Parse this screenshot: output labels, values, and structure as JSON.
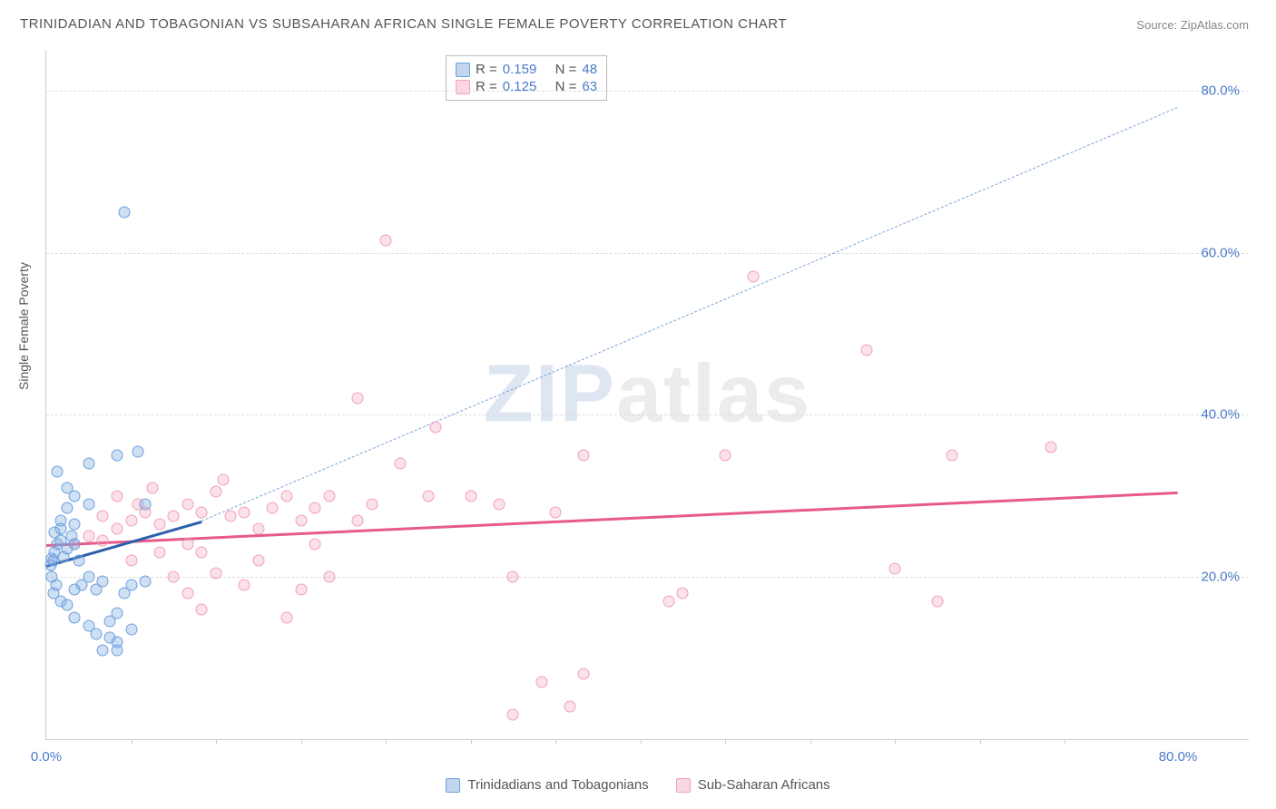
{
  "title": "TRINIDADIAN AND TOBAGONIAN VS SUBSAHARAN AFRICAN SINGLE FEMALE POVERTY CORRELATION CHART",
  "source_label": "Source:",
  "source_name": "ZipAtlas.com",
  "y_axis_label": "Single Female Poverty",
  "watermark_a": "ZIP",
  "watermark_b": "atlas",
  "axes": {
    "x_min": 0,
    "x_max": 85,
    "y_min": 0,
    "y_max": 85,
    "x_ticks": [
      0,
      80
    ],
    "x_tick_labels": [
      "0.0%",
      "80.0%"
    ],
    "minor_x_ticks": [
      6,
      12,
      18,
      24,
      30,
      36,
      42,
      48,
      54,
      60,
      66,
      72
    ],
    "y_ticks": [
      20,
      40,
      60,
      80
    ],
    "y_tick_labels": [
      "20.0%",
      "40.0%",
      "60.0%",
      "80.0%"
    ]
  },
  "colors": {
    "blue_fill": "rgba(120,165,220,0.35)",
    "blue_stroke": "#6da0e0",
    "blue_line_solid": "#2b5faa",
    "blue_line_dash": "#7aa5dc",
    "pink_fill": "rgba(240,140,170,0.25)",
    "pink_stroke": "#f0a0b8",
    "pink_line": "#e75a8a",
    "grid": "#dddddd",
    "axis": "#cccccc",
    "tick_text": "#4a7ac7",
    "title_text": "#555555"
  },
  "stats": {
    "series1": {
      "r_label": "R =",
      "r": "0.159",
      "n_label": "N =",
      "n": "48"
    },
    "series2": {
      "r_label": "R =",
      "r": "0.125",
      "n_label": "N =",
      "n": "63"
    }
  },
  "legend": {
    "series1": "Trinidadians and Tobagonians",
    "series2": "Sub-Saharan Africans"
  },
  "trend_lines": {
    "blue_solid": {
      "x1": 0,
      "y1": 21.5,
      "x2": 11,
      "y2": 27
    },
    "blue_dash": {
      "x1": 11,
      "y1": 27,
      "x2": 80,
      "y2": 78
    },
    "pink": {
      "x1": 0,
      "y1": 24,
      "x2": 80,
      "y2": 30.5
    }
  },
  "points_blue": [
    [
      0.3,
      21.5
    ],
    [
      0.5,
      22
    ],
    [
      0.6,
      23
    ],
    [
      0.8,
      24
    ],
    [
      1,
      24.5
    ],
    [
      0.4,
      20
    ],
    [
      0.7,
      19
    ],
    [
      1.2,
      22.5
    ],
    [
      1.5,
      23.5
    ],
    [
      1.8,
      25
    ],
    [
      2,
      24
    ],
    [
      2.3,
      22
    ],
    [
      0.5,
      18
    ],
    [
      1,
      17
    ],
    [
      1.5,
      16.5
    ],
    [
      2,
      18.5
    ],
    [
      2.5,
      19
    ],
    [
      3,
      20
    ],
    [
      3.5,
      18.5
    ],
    [
      4,
      19.5
    ],
    [
      2,
      15
    ],
    [
      3,
      14
    ],
    [
      3.5,
      13
    ],
    [
      4.5,
      14.5
    ],
    [
      5,
      15.5
    ],
    [
      5.5,
      18
    ],
    [
      4,
      11
    ],
    [
      5,
      12
    ],
    [
      6,
      13.5
    ],
    [
      5,
      11
    ],
    [
      4.5,
      12.5
    ],
    [
      1,
      27
    ],
    [
      1.5,
      28.5
    ],
    [
      2,
      30
    ],
    [
      3,
      29
    ],
    [
      1.5,
      31
    ],
    [
      0.8,
      33
    ],
    [
      3,
      34
    ],
    [
      5,
      35
    ],
    [
      6.5,
      35.5
    ],
    [
      7,
      29
    ],
    [
      1,
      26
    ],
    [
      2,
      26.5
    ],
    [
      0.6,
      25.5
    ],
    [
      6,
      19
    ],
    [
      7,
      19.5
    ],
    [
      5.5,
      65
    ],
    [
      0.4,
      22.3
    ]
  ],
  "points_pink": [
    [
      2,
      24
    ],
    [
      3,
      25
    ],
    [
      4,
      24.5
    ],
    [
      5,
      26
    ],
    [
      6,
      27
    ],
    [
      7,
      28
    ],
    [
      7.5,
      31
    ],
    [
      5,
      30
    ],
    [
      6.5,
      29
    ],
    [
      8,
      26.5
    ],
    [
      9,
      27.5
    ],
    [
      10,
      29
    ],
    [
      11,
      28
    ],
    [
      12,
      30.5
    ],
    [
      12.5,
      32
    ],
    [
      10,
      24
    ],
    [
      11,
      23
    ],
    [
      13,
      27.5
    ],
    [
      14,
      28
    ],
    [
      15,
      26
    ],
    [
      16,
      28.5
    ],
    [
      17,
      30
    ],
    [
      18,
      27
    ],
    [
      19,
      28.5
    ],
    [
      20,
      30
    ],
    [
      9,
      20
    ],
    [
      10,
      18
    ],
    [
      12,
      20.5
    ],
    [
      14,
      19
    ],
    [
      11,
      16
    ],
    [
      17,
      15
    ],
    [
      18,
      18.5
    ],
    [
      20,
      20
    ],
    [
      22,
      27
    ],
    [
      23,
      29
    ],
    [
      25,
      34
    ],
    [
      27,
      30
    ],
    [
      27.5,
      38.5
    ],
    [
      22,
      42
    ],
    [
      30,
      30
    ],
    [
      32,
      29
    ],
    [
      33,
      20
    ],
    [
      36,
      28
    ],
    [
      38,
      35
    ],
    [
      24,
      61.5
    ],
    [
      33,
      3
    ],
    [
      35,
      7
    ],
    [
      38,
      8
    ],
    [
      37,
      4
    ],
    [
      44,
      17
    ],
    [
      45,
      18
    ],
    [
      48,
      35
    ],
    [
      50,
      57
    ],
    [
      58,
      48
    ],
    [
      63,
      17
    ],
    [
      64,
      35
    ],
    [
      71,
      36
    ],
    [
      60,
      21
    ],
    [
      15,
      22
    ],
    [
      19,
      24
    ],
    [
      8,
      23
    ],
    [
      6,
      22
    ],
    [
      4,
      27.5
    ]
  ]
}
